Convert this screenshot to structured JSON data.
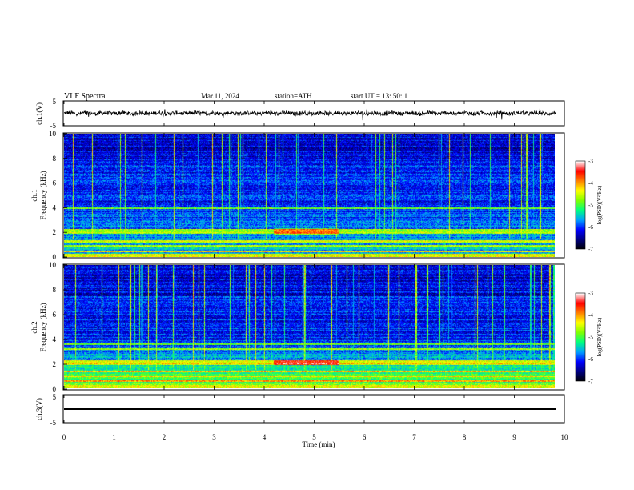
{
  "header": {
    "title": "VLF  Spectra",
    "date": "Mar.11, 2024",
    "station": "station=ATH",
    "start_ut": "start  UT  =    13: 50: 1"
  },
  "chart_data": [
    {
      "type": "line",
      "panel": "ch1-waveform",
      "ylabel": "ch.1(V)",
      "ylim": [
        -5,
        5
      ],
      "y_ticks": [
        "5",
        "-5"
      ],
      "x_range_min": [
        0,
        9.83
      ],
      "series": [
        {
          "values_description_free": true,
          "level": 0
        }
      ],
      "line_color": "#000000"
    },
    {
      "type": "heatmap",
      "panel": "ch1-spectrogram",
      "ylabel_channel": "ch.1",
      "ylabel": "Frequency  (kHz)",
      "ylim": [
        0,
        10
      ],
      "y_ticks": [
        "0",
        "2",
        "4",
        "6",
        "8",
        "10"
      ],
      "x_range_min": [
        0,
        9.83
      ],
      "colorbar": {
        "label": "log(PSD)(V²/Hz)",
        "range": [
          -7,
          -3
        ],
        "ticks": [
          "-3",
          "-4",
          "-5",
          "-6",
          "-7"
        ]
      },
      "strong_bands_khz": [
        0.5,
        0.9,
        1.3,
        2.0,
        2.2,
        4.0
      ],
      "enhanced_region": {
        "t_min": [
          4.2,
          5.5
        ],
        "f_khz": [
          1.8,
          2.4
        ]
      }
    },
    {
      "type": "heatmap",
      "panel": "ch2-spectrogram",
      "ylabel_channel": "ch.2",
      "ylabel": "Frequency  (kHz)",
      "ylim": [
        0,
        10
      ],
      "y_ticks": [
        "0",
        "2",
        "4",
        "6",
        "8",
        "10"
      ],
      "x_range_min": [
        0,
        9.83
      ],
      "colorbar": {
        "label": "log(PSD)(V²/Hz)",
        "range": [
          -7,
          -3
        ],
        "ticks": [
          "-3",
          "-4",
          "-5",
          "-6",
          "-7"
        ]
      },
      "strong_bands_khz": [
        0.6,
        1.0,
        1.4,
        2.0,
        2.2,
        3.2,
        3.6
      ],
      "enhanced_region": {
        "t_min": [
          4.2,
          5.5
        ],
        "f_khz": [
          1.9,
          2.3
        ]
      }
    },
    {
      "type": "line",
      "panel": "ch3-waveform",
      "ylabel": "ch.3(V)",
      "ylim": [
        -5,
        5
      ],
      "y_ticks": [
        "5",
        "-5"
      ],
      "x_range_min": [
        0,
        9.83
      ],
      "series": [
        {
          "level": 0
        }
      ],
      "line_color": "#000000"
    }
  ],
  "x_axis": {
    "label": "Time  (min)",
    "ticks": [
      "0",
      "1",
      "2",
      "3",
      "4",
      "5",
      "6",
      "7",
      "8",
      "9",
      "10"
    ],
    "range": [
      0,
      10
    ]
  },
  "colors": {
    "background": "#000033",
    "colormap": [
      "#000000",
      "#000080",
      "#0000ff",
      "#00a0ff",
      "#00ff80",
      "#80ff00",
      "#ffff00",
      "#ff8000",
      "#ff0000",
      "#ffffff"
    ]
  }
}
